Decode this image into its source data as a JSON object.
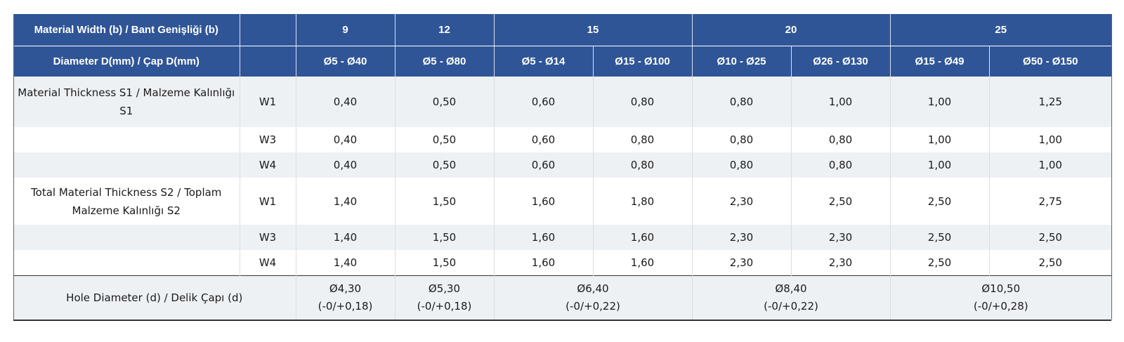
{
  "header": {
    "width_label": "Material Width (b) / Bant Genişliği (b)",
    "widths": [
      "9",
      "12",
      "15",
      "20",
      "25"
    ],
    "diameter_label": "Diameter D(mm) / Çap D(mm)",
    "diameters": [
      "Ø5 - Ø40",
      "Ø5 - Ø80",
      "Ø5 - Ø14",
      "Ø15 - Ø100",
      "Ø10 - Ø25",
      "Ø26 - Ø130",
      "Ø15 - Ø49",
      "Ø50 - Ø150"
    ]
  },
  "s1": {
    "label": "Material Thickness S1 / Malzeme Kalınlığı S1",
    "rows": [
      {
        "w": "W1",
        "values": [
          "0,40",
          "0,50",
          "0,60",
          "0,80",
          "0,80",
          "1,00",
          "1,00",
          "1,25"
        ]
      },
      {
        "w": "W3",
        "values": [
          "0,40",
          "0,50",
          "0,60",
          "0,80",
          "0,80",
          "0,80",
          "1,00",
          "1,00"
        ]
      },
      {
        "w": "W4",
        "values": [
          "0,40",
          "0,50",
          "0,60",
          "0,80",
          "0,80",
          "0,80",
          "1,00",
          "1,00"
        ]
      }
    ]
  },
  "s2": {
    "label": "Total Material Thickness S2 / Toplam Malzeme Kalınlığı S2",
    "rows": [
      {
        "w": "W1",
        "values": [
          "1,40",
          "1,50",
          "1,60",
          "1,80",
          "2,30",
          "2,50",
          "2,50",
          "2,75"
        ]
      },
      {
        "w": "W3",
        "values": [
          "1,40",
          "1,50",
          "1,60",
          "1,60",
          "2,30",
          "2,30",
          "2,50",
          "2,50"
        ]
      },
      {
        "w": "W4",
        "values": [
          "1,40",
          "1,50",
          "1,60",
          "1,60",
          "2,30",
          "2,30",
          "2,50",
          "2,50"
        ]
      }
    ]
  },
  "hole": {
    "label": "Hole Diameter (d) / Delik Çapı (d)",
    "values": [
      {
        "d": "Ø4,30",
        "tol": "(-0/+0,18)"
      },
      {
        "d": "Ø5,30",
        "tol": "(-0/+0,18)"
      },
      {
        "d": "Ø6,40",
        "tol": "(-0/+0,22)"
      },
      {
        "d": "Ø8,40",
        "tol": "(-0/+0,22)"
      },
      {
        "d": "Ø10,50",
        "tol": "(-0/+0,28)"
      }
    ]
  },
  "colors": {
    "header_bg": "#2f5597",
    "header_text": "#ffffff",
    "row_shade": "#eef1f4",
    "text": "#1a1a1a"
  }
}
